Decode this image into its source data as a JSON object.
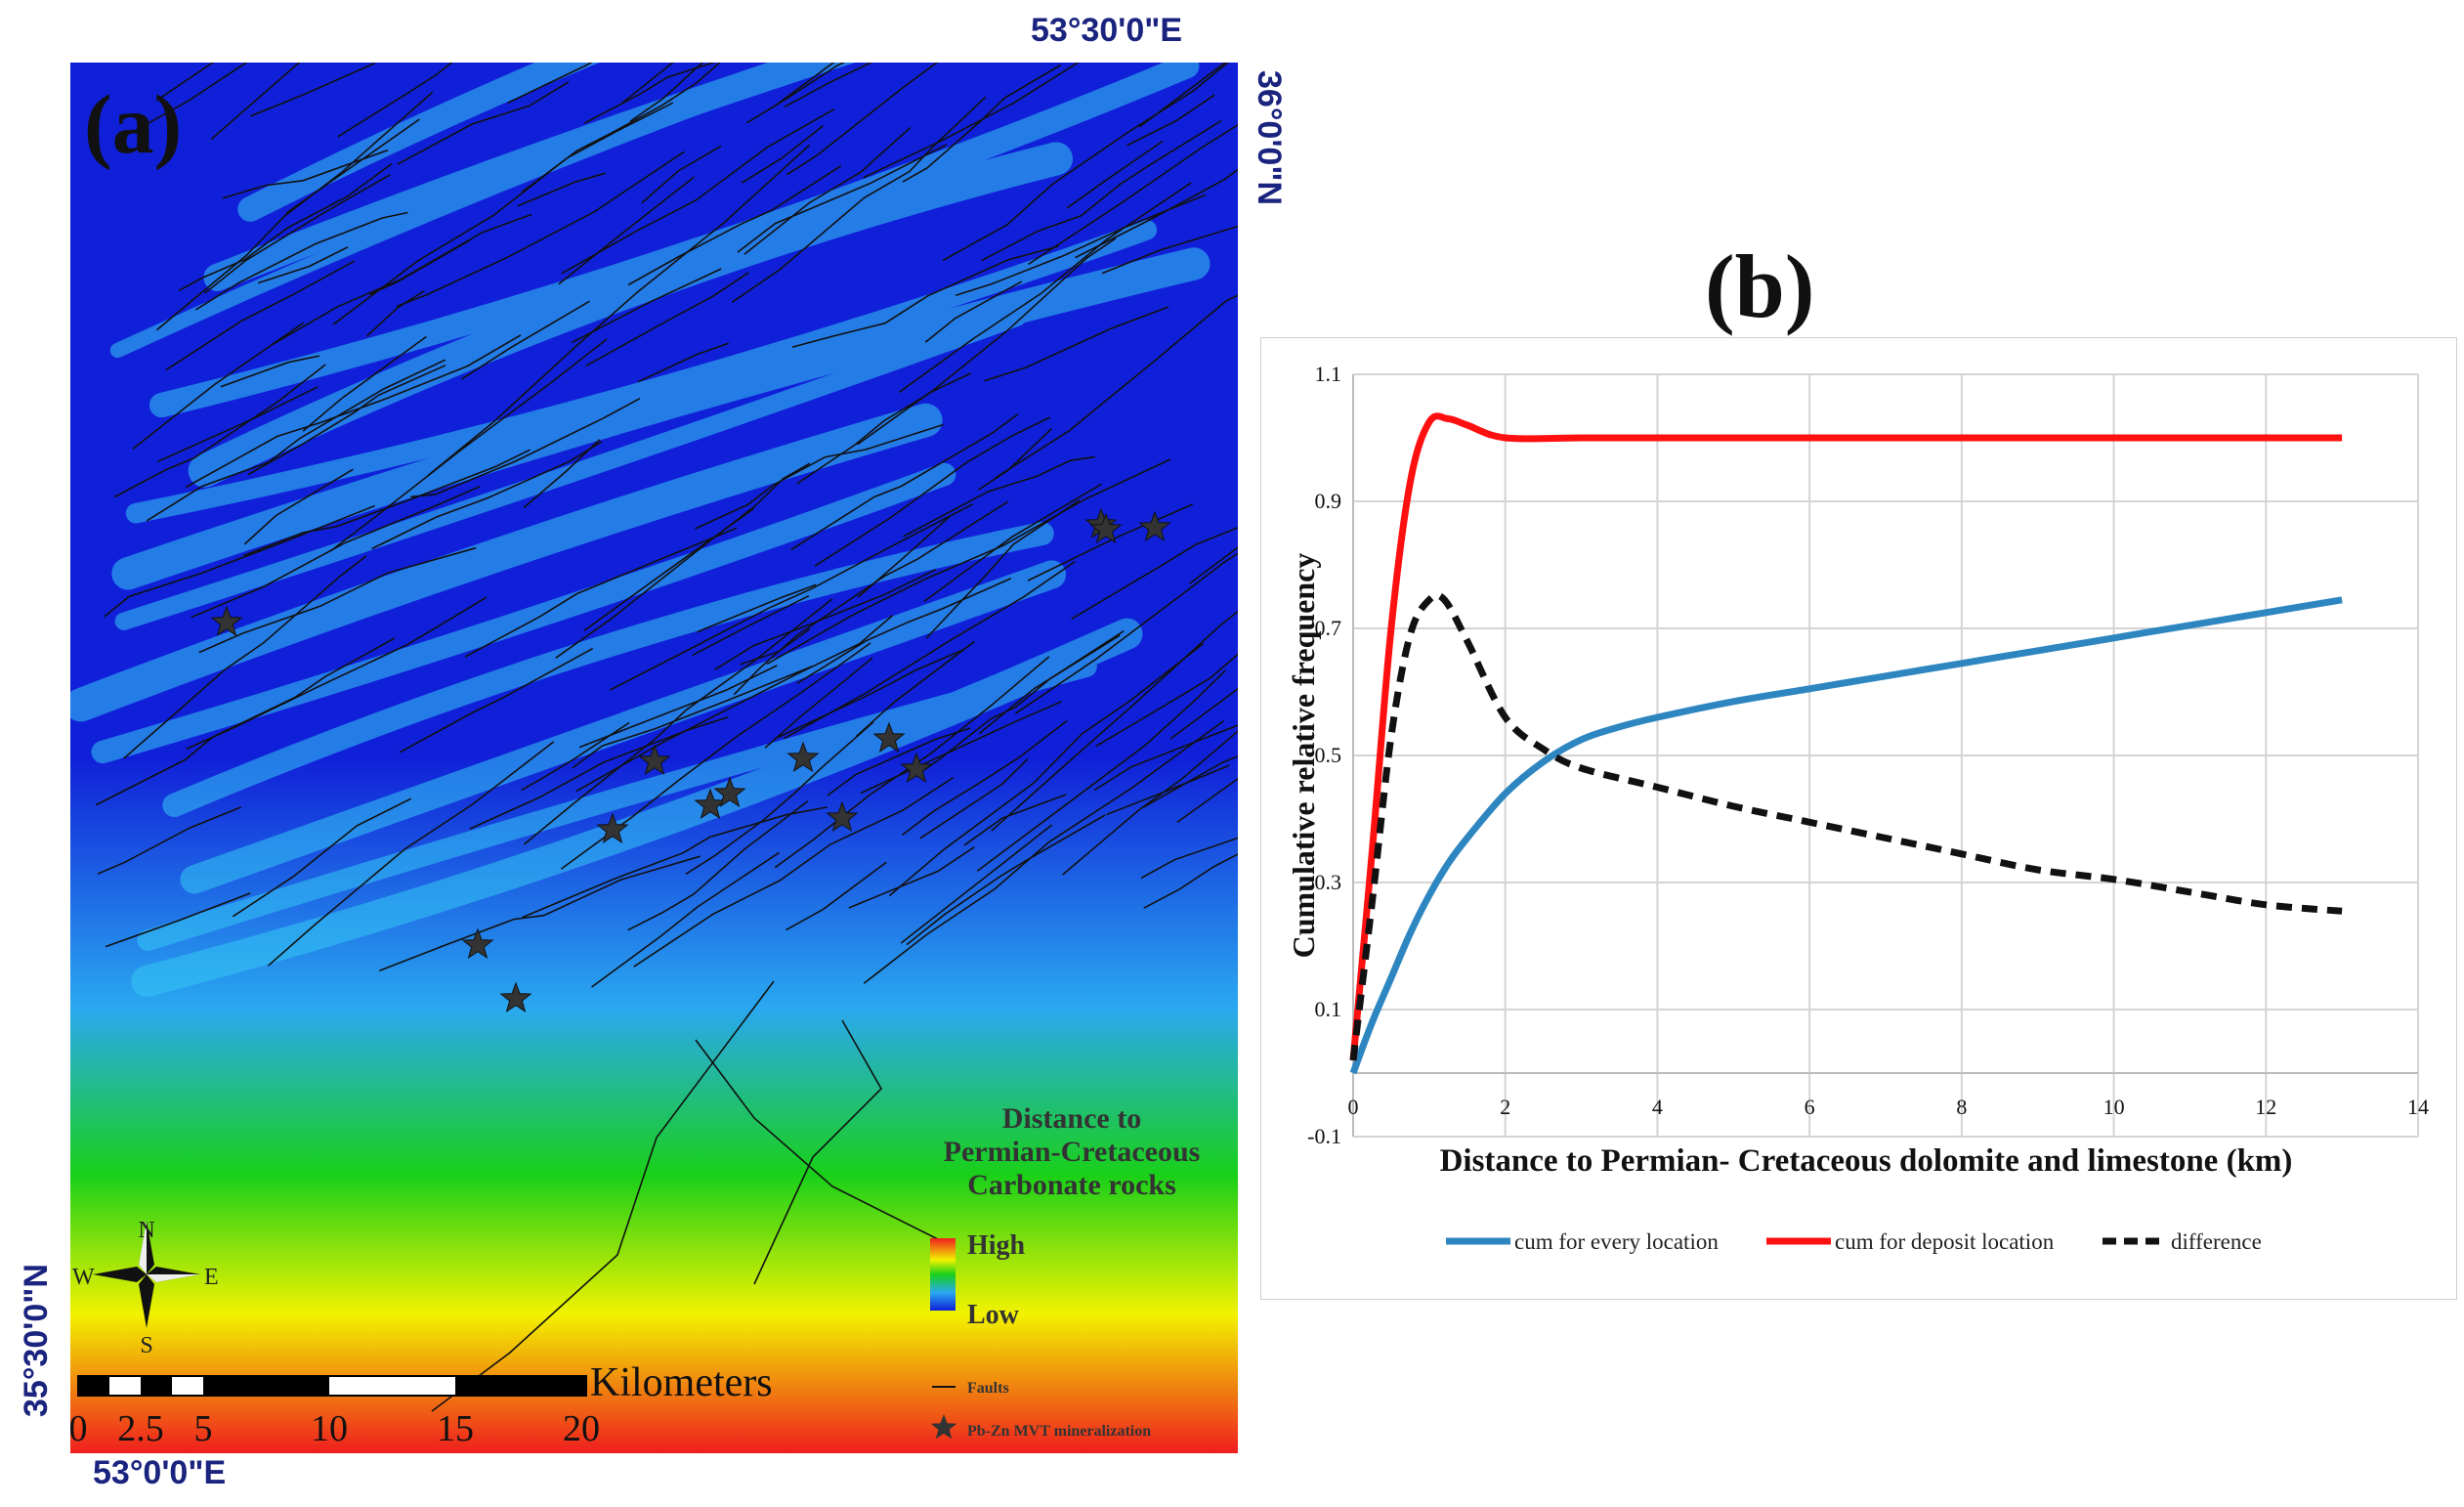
{
  "map": {
    "panel_label": "(a)",
    "coord_top_e": "53°30'0\"E",
    "coord_bottom_e": "53°0'0\"E",
    "coord_right_n": "36°0'0\"N",
    "coord_left_n": "35°30'0\"N",
    "legend_title_lines": [
      "Distance to",
      "Permian-Cretaceous",
      "Carbonate rocks"
    ],
    "legend_high": "High",
    "legend_low": "Low",
    "legend_faults": "Faults",
    "legend_mineralization": "Pb-Zn MVT mineralization",
    "compass": {
      "n": "N",
      "s": "S",
      "e": "E",
      "w": "W"
    },
    "scale_label": "Kilometers",
    "scale_ticks": [
      "0",
      "2.5",
      "5",
      "10",
      "15",
      "20"
    ],
    "colors": {
      "low": "#1020d8",
      "mid_low": "#2aa8f0",
      "mid": "#19d019",
      "mid_high": "#f2f200",
      "high": "#ef1e1e"
    }
  },
  "chart_title": "(b)",
  "chart_data": {
    "type": "line",
    "title": "(b)",
    "xlabel": "Distance to Permian- Cretaceous dolomite and limestone (km)",
    "ylabel": "Cumulative  relative  frequency",
    "xlim": [
      0,
      14
    ],
    "ylim": [
      -0.1,
      1.1
    ],
    "x_ticks": [
      0,
      2,
      4,
      6,
      8,
      10,
      12,
      14
    ],
    "y_ticks": [
      -0.1,
      0.1,
      0.3,
      0.5,
      0.7,
      0.9,
      1.1
    ],
    "grid": true,
    "legend_position": "bottom",
    "series": [
      {
        "name": "cum for every location",
        "color": "#2e86c1",
        "style": "solid",
        "x": [
          0,
          0.25,
          0.5,
          0.75,
          1,
          1.25,
          1.5,
          2,
          2.5,
          3,
          3.5,
          4,
          5,
          6,
          7,
          8,
          9,
          10,
          11,
          12,
          13
        ],
        "y": [
          0,
          0.08,
          0.15,
          0.22,
          0.28,
          0.33,
          0.37,
          0.44,
          0.49,
          0.525,
          0.545,
          0.56,
          0.585,
          0.605,
          0.625,
          0.645,
          0.665,
          0.685,
          0.705,
          0.725,
          0.745
        ]
      },
      {
        "name": "cum for deposit location",
        "color": "#ff1010",
        "style": "solid",
        "x": [
          0,
          0.25,
          0.5,
          0.75,
          1,
          1.25,
          1.5,
          2,
          3,
          4,
          6,
          8,
          10,
          12,
          13
        ],
        "y": [
          0.02,
          0.35,
          0.7,
          0.93,
          1.025,
          1.03,
          1.02,
          1.0,
          1.0,
          1.0,
          1.0,
          1.0,
          1.0,
          1.0,
          1.0
        ]
      },
      {
        "name": "difference",
        "color": "#111111",
        "style": "dashed",
        "x": [
          0,
          0.25,
          0.5,
          0.75,
          1,
          1.2,
          1.5,
          2,
          2.5,
          3,
          4,
          5,
          6,
          7,
          8,
          9,
          10,
          11,
          12,
          13
        ],
        "y": [
          0.02,
          0.27,
          0.53,
          0.69,
          0.745,
          0.745,
          0.68,
          0.56,
          0.51,
          0.48,
          0.45,
          0.42,
          0.395,
          0.37,
          0.345,
          0.32,
          0.305,
          0.285,
          0.265,
          0.255
        ]
      }
    ]
  }
}
